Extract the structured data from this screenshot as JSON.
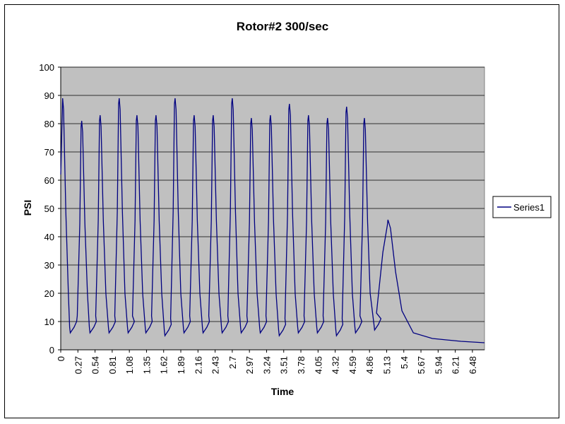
{
  "chart_data": {
    "type": "line",
    "title": "Rotor#2 300/sec",
    "xlabel": "Time",
    "ylabel": "PSI",
    "ylim": [
      0,
      100
    ],
    "yticks": [
      "0",
      "10",
      "20",
      "30",
      "40",
      "50",
      "60",
      "70",
      "80",
      "90",
      "100"
    ],
    "xticks": [
      "0",
      "0.27",
      "0.54",
      "0.81",
      "1.08",
      "1.35",
      "1.62",
      "1.89",
      "2.16",
      "2.43",
      "2.7",
      "2.97",
      "3.24",
      "3.51",
      "3.78",
      "4.05",
      "4.32",
      "4.59",
      "4.86",
      "5.13",
      "5.4",
      "5.67",
      "5.94",
      "6.21",
      "6.48"
    ],
    "xlim": [
      0,
      6.67
    ],
    "grid": true,
    "legend_position": "right",
    "colors": {
      "plot_bg": "#c0c0c0",
      "line": "#000080",
      "grid": "#000000"
    },
    "series": [
      {
        "name": "Series1",
        "peaks": [
          {
            "t": 0.03,
            "psi": 89
          },
          {
            "t": 0.33,
            "psi": 81
          },
          {
            "t": 0.62,
            "psi": 83
          },
          {
            "t": 0.92,
            "psi": 89
          },
          {
            "t": 1.2,
            "psi": 83
          },
          {
            "t": 1.5,
            "psi": 83
          },
          {
            "t": 1.8,
            "psi": 89
          },
          {
            "t": 2.1,
            "psi": 83
          },
          {
            "t": 2.4,
            "psi": 83
          },
          {
            "t": 2.7,
            "psi": 89
          },
          {
            "t": 3.0,
            "psi": 82
          },
          {
            "t": 3.3,
            "psi": 83
          },
          {
            "t": 3.6,
            "psi": 87
          },
          {
            "t": 3.9,
            "psi": 83
          },
          {
            "t": 4.2,
            "psi": 82
          },
          {
            "t": 4.5,
            "psi": 86
          },
          {
            "t": 4.78,
            "psi": 82
          },
          {
            "t": 5.15,
            "psi": 46
          }
        ],
        "valleys": [
          {
            "t": 0.15,
            "psi": 6
          },
          {
            "t": 0.46,
            "psi": 6
          },
          {
            "t": 0.76,
            "psi": 6
          },
          {
            "t": 1.06,
            "psi": 6
          },
          {
            "t": 1.34,
            "psi": 6
          },
          {
            "t": 1.64,
            "psi": 5
          },
          {
            "t": 1.94,
            "psi": 6
          },
          {
            "t": 2.24,
            "psi": 6
          },
          {
            "t": 2.54,
            "psi": 6
          },
          {
            "t": 2.84,
            "psi": 6
          },
          {
            "t": 3.14,
            "psi": 6
          },
          {
            "t": 3.44,
            "psi": 5
          },
          {
            "t": 3.74,
            "psi": 6
          },
          {
            "t": 4.04,
            "psi": 6
          },
          {
            "t": 4.34,
            "psi": 5
          },
          {
            "t": 4.64,
            "psi": 6
          },
          {
            "t": 4.94,
            "psi": 7
          }
        ],
        "tail": [
          {
            "t": 5.55,
            "psi": 6
          },
          {
            "t": 5.85,
            "psi": 4
          },
          {
            "t": 6.3,
            "psi": 3
          },
          {
            "t": 6.67,
            "psi": 2.5
          }
        ]
      }
    ]
  }
}
